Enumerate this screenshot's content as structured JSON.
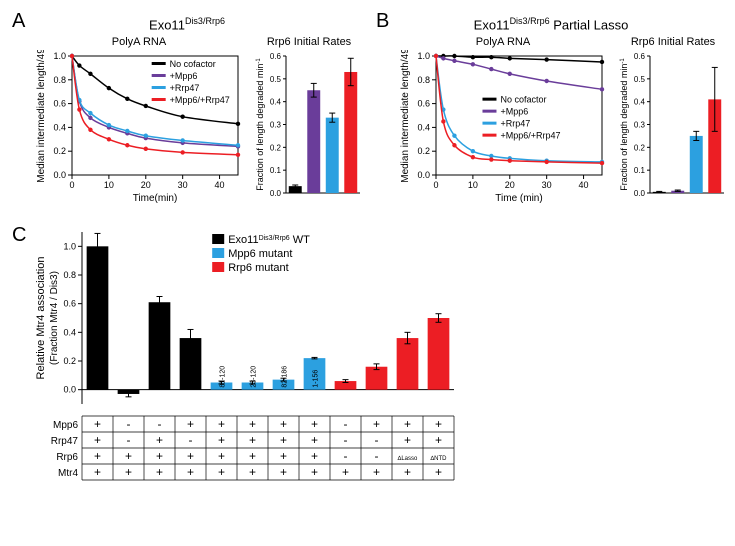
{
  "panelA": {
    "label": "A",
    "title_pre": "Exo11",
    "title_sup": "Dis3/Rrp6",
    "decay": {
      "title": "PolyA RNA",
      "xlabel": "Time(min)",
      "ylabel": "Median intermediate length/49",
      "xlim": [
        0,
        45
      ],
      "xticks": [
        0,
        10,
        20,
        30,
        40
      ],
      "ylim": [
        0,
        1.0
      ],
      "yticks": [
        0,
        0.2,
        0.4,
        0.6,
        0.8,
        1.0
      ],
      "background": "#ffffff",
      "axis_color": "#000000",
      "series": [
        {
          "name": "No cofactor",
          "color": "#000000",
          "t": [
            0,
            2,
            5,
            10,
            15,
            20,
            30,
            45
          ],
          "y": [
            1.0,
            0.92,
            0.85,
            0.73,
            0.64,
            0.58,
            0.49,
            0.43
          ]
        },
        {
          "name": "+Mpp6",
          "color": "#6a3d9a",
          "t": [
            0,
            2,
            5,
            10,
            15,
            20,
            30,
            45
          ],
          "y": [
            1.0,
            0.62,
            0.48,
            0.4,
            0.35,
            0.31,
            0.27,
            0.24
          ]
        },
        {
          "name": "+Rrp47",
          "color": "#2ca0e0",
          "t": [
            0,
            2,
            5,
            10,
            15,
            20,
            30,
            45
          ],
          "y": [
            1.0,
            0.63,
            0.52,
            0.42,
            0.37,
            0.33,
            0.29,
            0.25
          ]
        },
        {
          "name": "+Mpp6/+Rrp47",
          "color": "#ec1e24",
          "t": [
            0,
            2,
            5,
            10,
            15,
            20,
            30,
            45
          ],
          "y": [
            1.0,
            0.55,
            0.38,
            0.3,
            0.25,
            0.22,
            0.19,
            0.17
          ]
        }
      ],
      "legend_pos": "top-right"
    },
    "bars": {
      "title": "Rrp6 Initial Rates",
      "ylabel_pre": "Fraction of length degraded min",
      "ylabel_sup": "-1",
      "ylim": [
        0,
        0.6
      ],
      "yticks": [
        0,
        0.1,
        0.2,
        0.3,
        0.4,
        0.5,
        0.6
      ],
      "values": [
        {
          "color": "#000000",
          "v": 0.03,
          "err": 0.005
        },
        {
          "color": "#6a3d9a",
          "v": 0.45,
          "err": 0.03
        },
        {
          "color": "#2ca0e0",
          "v": 0.33,
          "err": 0.02
        },
        {
          "color": "#ec1e24",
          "v": 0.53,
          "err": 0.06
        }
      ],
      "bar_width": 0.7
    }
  },
  "panelB": {
    "label": "B",
    "title_pre": "Exo11",
    "title_sup": "Dis3/Rrp6",
    "title_post": " Partial Lasso",
    "decay": {
      "title": "PolyA RNA",
      "xlabel": "Time (min)",
      "ylabel": "Median intermediate length/49",
      "xlim": [
        0,
        45
      ],
      "xticks": [
        0,
        10,
        20,
        30,
        40
      ],
      "ylim": [
        0,
        1.0
      ],
      "yticks": [
        0,
        0.2,
        0.4,
        0.6,
        0.8,
        1.0
      ],
      "background": "#ffffff",
      "axis_color": "#000000",
      "series": [
        {
          "name": "No cofactor",
          "color": "#000000",
          "t": [
            0,
            2,
            5,
            10,
            15,
            20,
            30,
            45
          ],
          "y": [
            1.0,
            1.0,
            1.0,
            0.99,
            0.99,
            0.98,
            0.97,
            0.95
          ]
        },
        {
          "name": "+Mpp6",
          "color": "#6a3d9a",
          "t": [
            0,
            2,
            5,
            10,
            15,
            20,
            30,
            45
          ],
          "y": [
            1.0,
            0.98,
            0.96,
            0.93,
            0.89,
            0.85,
            0.79,
            0.72
          ]
        },
        {
          "name": "+Rrp47",
          "color": "#2ca0e0",
          "t": [
            0,
            2,
            5,
            10,
            15,
            20,
            30,
            45
          ],
          "y": [
            1.0,
            0.55,
            0.33,
            0.2,
            0.16,
            0.14,
            0.12,
            0.11
          ]
        },
        {
          "name": "+Mpp6/+Rrp47",
          "color": "#ec1e24",
          "t": [
            0,
            2,
            5,
            10,
            15,
            20,
            30,
            45
          ],
          "y": [
            1.0,
            0.45,
            0.25,
            0.15,
            0.13,
            0.12,
            0.11,
            0.1
          ]
        }
      ],
      "legend_pos": "middle"
    },
    "bars": {
      "title": "Rrp6 Initial Rates",
      "ylabel_pre": "Fraction of length degraded min",
      "ylabel_sup": "-1",
      "ylim": [
        0,
        0.6
      ],
      "yticks": [
        0,
        0.1,
        0.2,
        0.3,
        0.4,
        0.5,
        0.6
      ],
      "values": [
        {
          "color": "#000000",
          "v": 0.005,
          "err": 0.002
        },
        {
          "color": "#6a3d9a",
          "v": 0.01,
          "err": 0.003
        },
        {
          "color": "#2ca0e0",
          "v": 0.25,
          "err": 0.02
        },
        {
          "color": "#ec1e24",
          "v": 0.41,
          "err": 0.14
        }
      ],
      "bar_width": 0.7
    }
  },
  "panelC": {
    "label": "C",
    "ylabel_top": "Relative Mtr4 association",
    "ylabel_bottom": "(Fraction Mtr4 / Dis3)",
    "ylim": [
      -0.1,
      1.1
    ],
    "yticks": [
      0,
      0.2,
      0.4,
      0.6,
      0.8,
      1.0
    ],
    "bar_colors": {
      "WT": "#000000",
      "Mpp6": "#2ca0e0",
      "Rrp6": "#ec1e24"
    },
    "legend": [
      {
        "label_pre": "Exo11",
        "label_sup": "Dis3/Rrp6",
        "label_post": " WT",
        "color": "#000000"
      },
      {
        "label": "Mpp6 mutant",
        "color": "#2ca0e0"
      },
      {
        "label": "Rrp6 mutant",
        "color": "#ec1e24"
      }
    ],
    "bars": [
      {
        "group": "WT",
        "v": 1.0,
        "err": 0.09,
        "top_label": ""
      },
      {
        "group": "WT",
        "v": -0.03,
        "err": 0.02,
        "top_label": ""
      },
      {
        "group": "WT",
        "v": 0.61,
        "err": 0.04,
        "top_label": ""
      },
      {
        "group": "WT",
        "v": 0.36,
        "err": 0.06,
        "top_label": ""
      },
      {
        "group": "Mpp6",
        "v": 0.05,
        "err": 0.01,
        "top_label": "81-120"
      },
      {
        "group": "Mpp6",
        "v": 0.05,
        "err": 0.01,
        "top_label": "23-120"
      },
      {
        "group": "Mpp6",
        "v": 0.07,
        "err": 0.01,
        "top_label": "82-186"
      },
      {
        "group": "Mpp6",
        "v": 0.22,
        "err": 0.005,
        "top_label": "1-156"
      },
      {
        "group": "Rrp6",
        "v": 0.06,
        "err": 0.01,
        "top_label": ""
      },
      {
        "group": "Rrp6",
        "v": 0.16,
        "err": 0.02,
        "top_label": ""
      },
      {
        "group": "Rrp6",
        "v": 0.36,
        "err": 0.04,
        "top_label": ""
      },
      {
        "group": "Rrp6",
        "v": 0.5,
        "err": 0.03,
        "top_label": ""
      }
    ],
    "condition_rows": [
      {
        "name": "Mpp6",
        "marks": [
          "+",
          "-",
          "-",
          "+",
          "+",
          "+",
          "+",
          "+",
          "-",
          "+",
          "+",
          "+"
        ]
      },
      {
        "name": "Rrp47",
        "marks": [
          "+",
          "-",
          "+",
          "-",
          "+",
          "+",
          "+",
          "+",
          "-",
          "-",
          "+",
          "+"
        ]
      },
      {
        "name": "Rrp6",
        "marks": [
          "+",
          "+",
          "+",
          "+",
          "+",
          "+",
          "+",
          "+",
          "-",
          "-",
          "∆Lasso",
          "∆NTD"
        ]
      },
      {
        "name": "Mtr4",
        "marks": [
          "+",
          "+",
          "+",
          "+",
          "+",
          "+",
          "+",
          "+",
          "+",
          "+",
          "+",
          "+"
        ]
      }
    ]
  }
}
